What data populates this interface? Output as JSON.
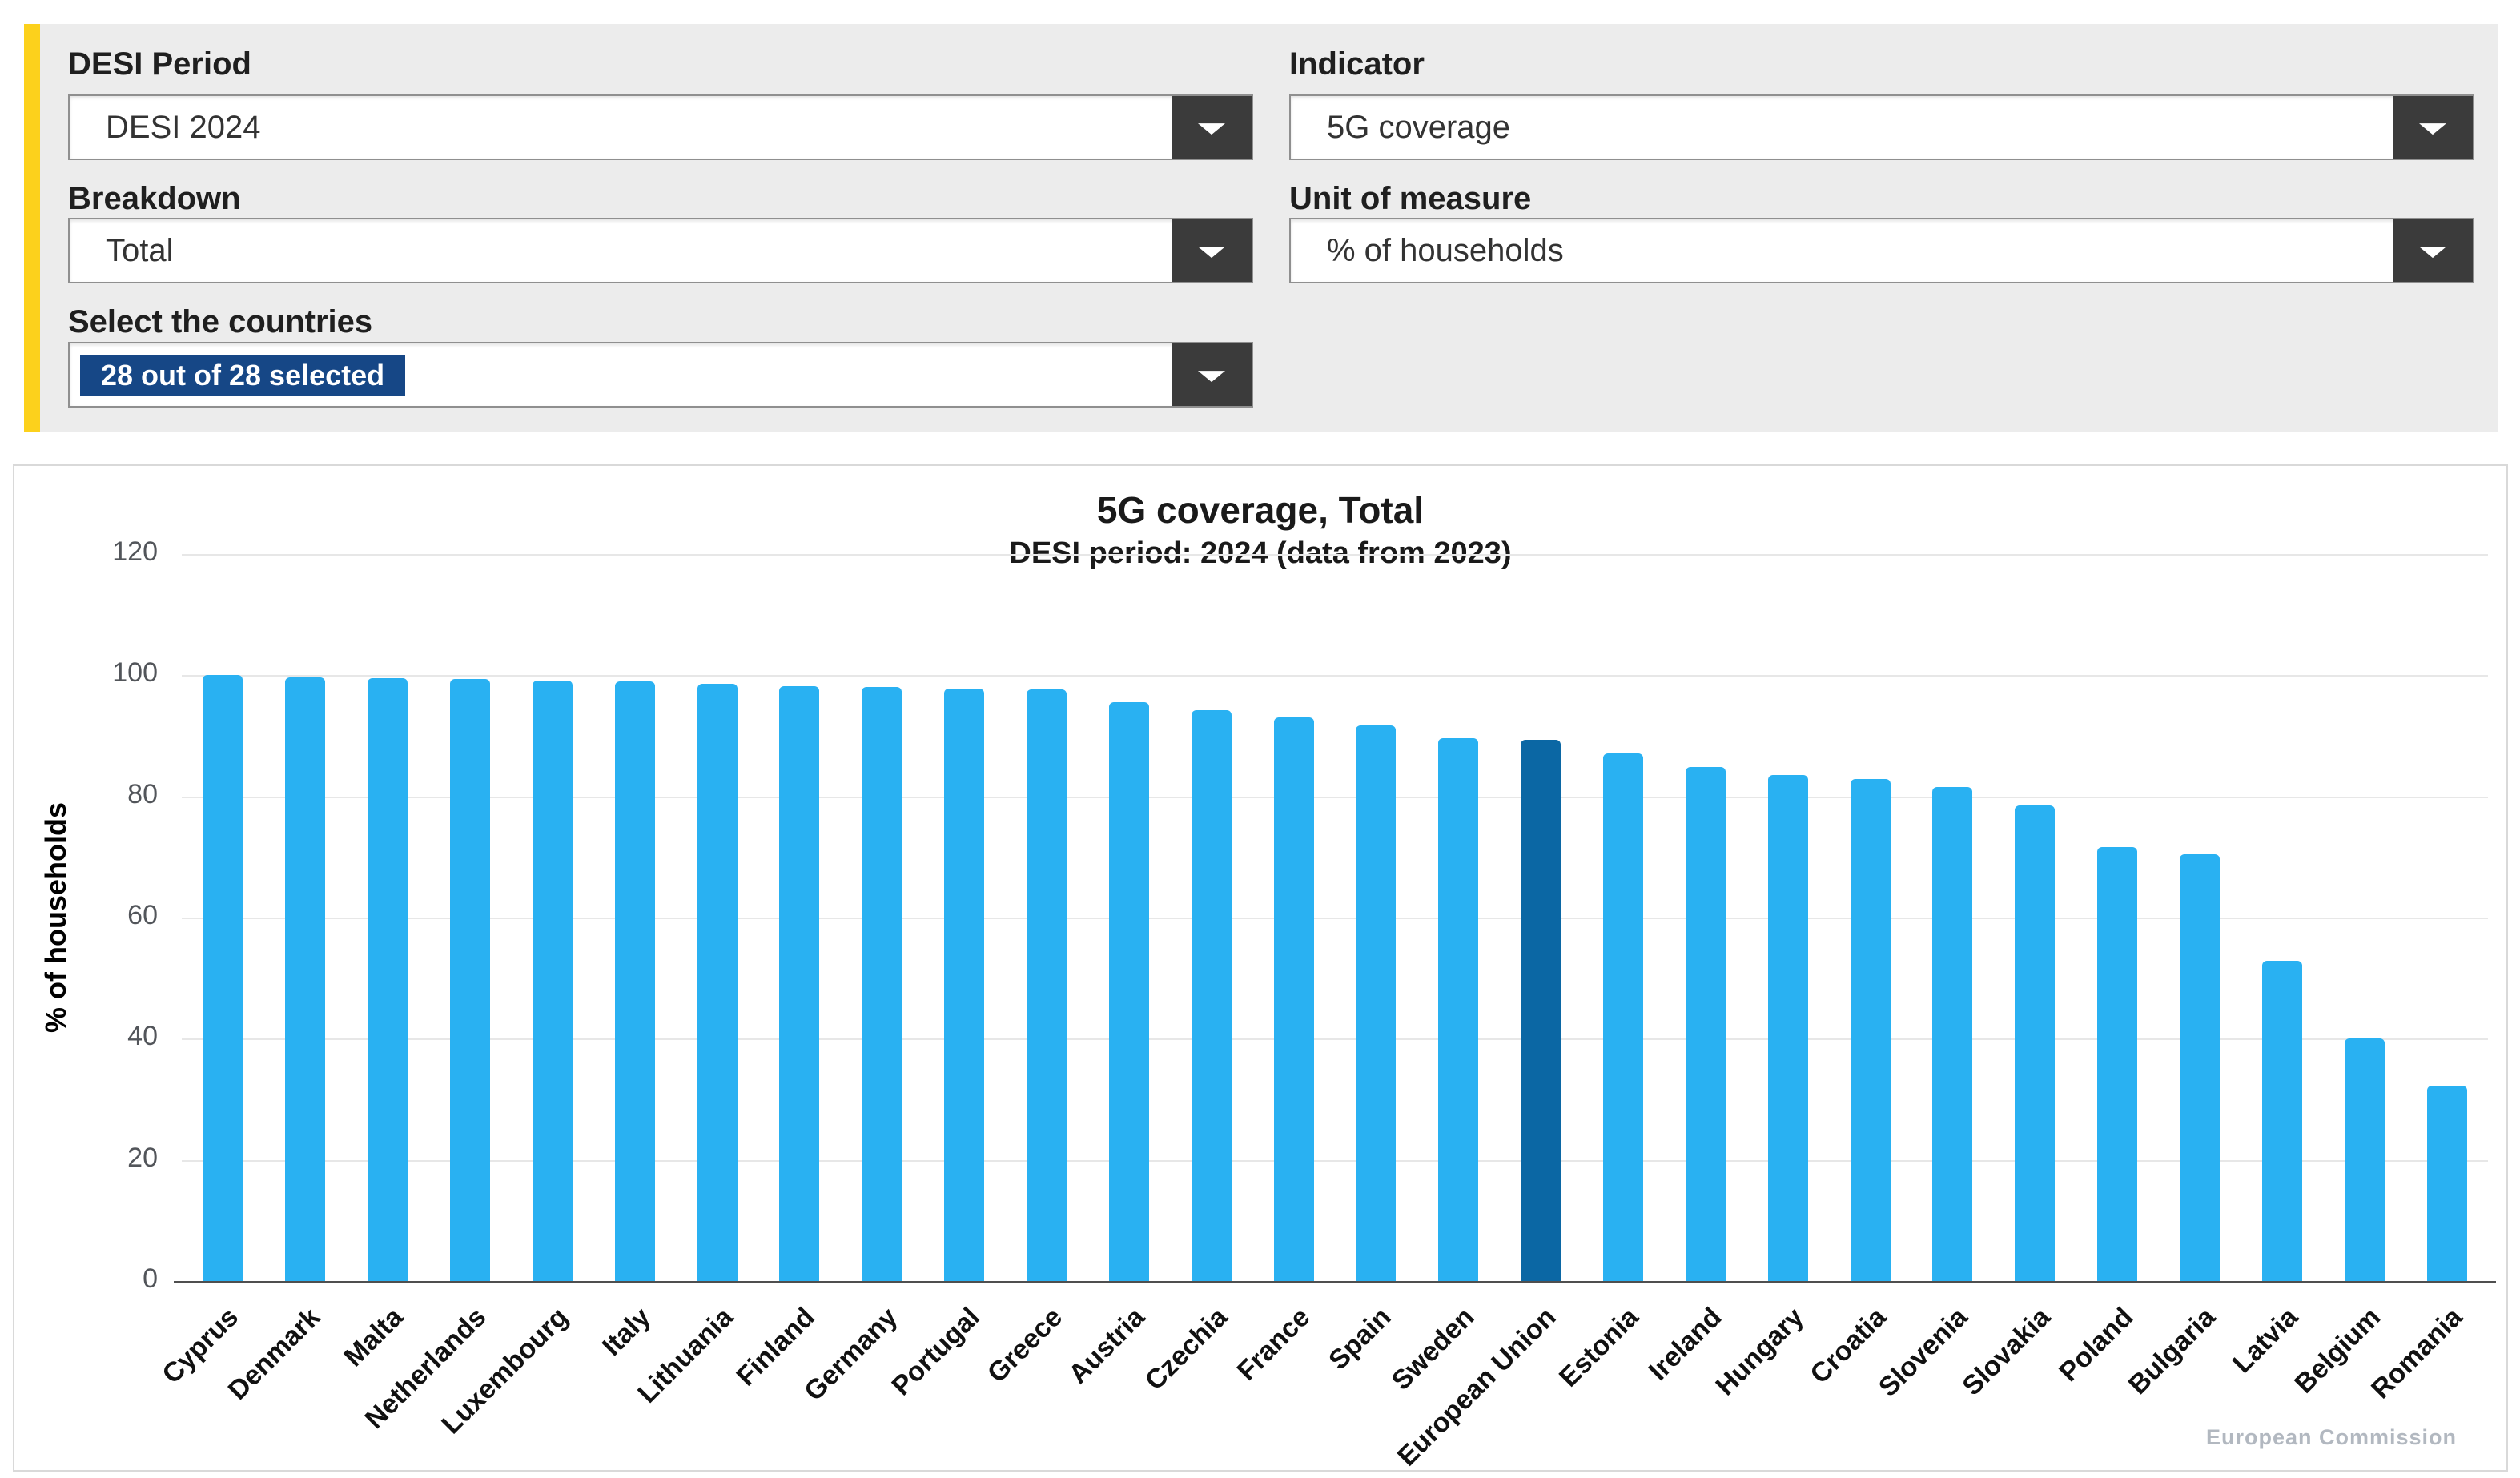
{
  "filters": {
    "desi_period": {
      "label": "DESI Period",
      "value": "DESI 2024"
    },
    "indicator": {
      "label": "Indicator",
      "value": "5G coverage"
    },
    "breakdown": {
      "label": "Breakdown",
      "value": "Total"
    },
    "unit": {
      "label": "Unit of measure",
      "value": "% of households"
    },
    "countries": {
      "label": "Select the countries",
      "value": "28 out of 28 selected"
    }
  },
  "watermark": "European Commission",
  "colors": {
    "accent_yellow": "#fcd11c",
    "panel_gray": "#ececec",
    "dropdown_dark": "#3b3b3b",
    "chip_navy": "#164786",
    "bar_blue": "#29b1f2",
    "eu_bar_blue": "#0b67a4",
    "gridline": "#e7e7e7",
    "axis": "#4f4f4f"
  },
  "chart_data": {
    "type": "bar",
    "title": "5G coverage, Total",
    "subtitle": "DESI period: 2024 (data from 2023)",
    "xlabel": "",
    "ylabel": "% of households",
    "ylim": [
      0,
      120
    ],
    "ytick_step": 20,
    "grid": true,
    "legend_position": "none",
    "categories": [
      "Cyprus",
      "Denmark",
      "Malta",
      "Netherlands",
      "Luxembourg",
      "Italy",
      "Lithuania",
      "Finland",
      "Germany",
      "Portugal",
      "Greece",
      "Austria",
      "Czechia",
      "France",
      "Spain",
      "Sweden",
      "European Union",
      "Estonia",
      "Ireland",
      "Hungary",
      "Croatia",
      "Slovenia",
      "Slovakia",
      "Poland",
      "Bulgaria",
      "Latvia",
      "Belgium",
      "Romania"
    ],
    "values": [
      100,
      99.6,
      99.5,
      99.4,
      99.1,
      99.0,
      98.6,
      98.2,
      98.1,
      97.8,
      97.7,
      95.6,
      94.2,
      93.0,
      91.7,
      89.6,
      89.3,
      87.1,
      84.9,
      83.5,
      82.9,
      81.5,
      78.5,
      71.6,
      70.5,
      52.8,
      40.1,
      32.3
    ],
    "highlight_category": "European Union",
    "bar_color": "#29b1f2",
    "highlight_color": "#0b67a4"
  }
}
